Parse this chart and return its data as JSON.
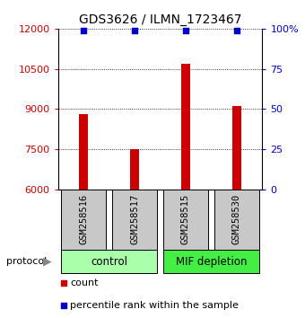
{
  "title": "GDS3626 / ILMN_1723467",
  "samples": [
    "GSM258516",
    "GSM258517",
    "GSM258515",
    "GSM258530"
  ],
  "counts": [
    8800,
    7500,
    10700,
    9100
  ],
  "percentile_ranks": [
    99,
    99,
    99,
    99
  ],
  "ylim_left": [
    6000,
    12000
  ],
  "ylim_right": [
    0,
    100
  ],
  "yticks_left": [
    6000,
    7500,
    9000,
    10500,
    12000
  ],
  "yticks_right": [
    0,
    25,
    50,
    75,
    100
  ],
  "bar_color": "#cc0000",
  "percentile_color": "#0000cc",
  "groups": [
    {
      "label": "control",
      "samples": [
        0,
        1
      ],
      "color": "#aaffaa"
    },
    {
      "label": "MIF depletion",
      "samples": [
        2,
        3
      ],
      "color": "#44ee44"
    }
  ],
  "protocol_label": "protocol",
  "legend_count_label": "count",
  "legend_percentile_label": "percentile rank within the sample",
  "background_color": "#ffffff",
  "label_area_color": "#c8c8c8",
  "bar_width": 0.18
}
